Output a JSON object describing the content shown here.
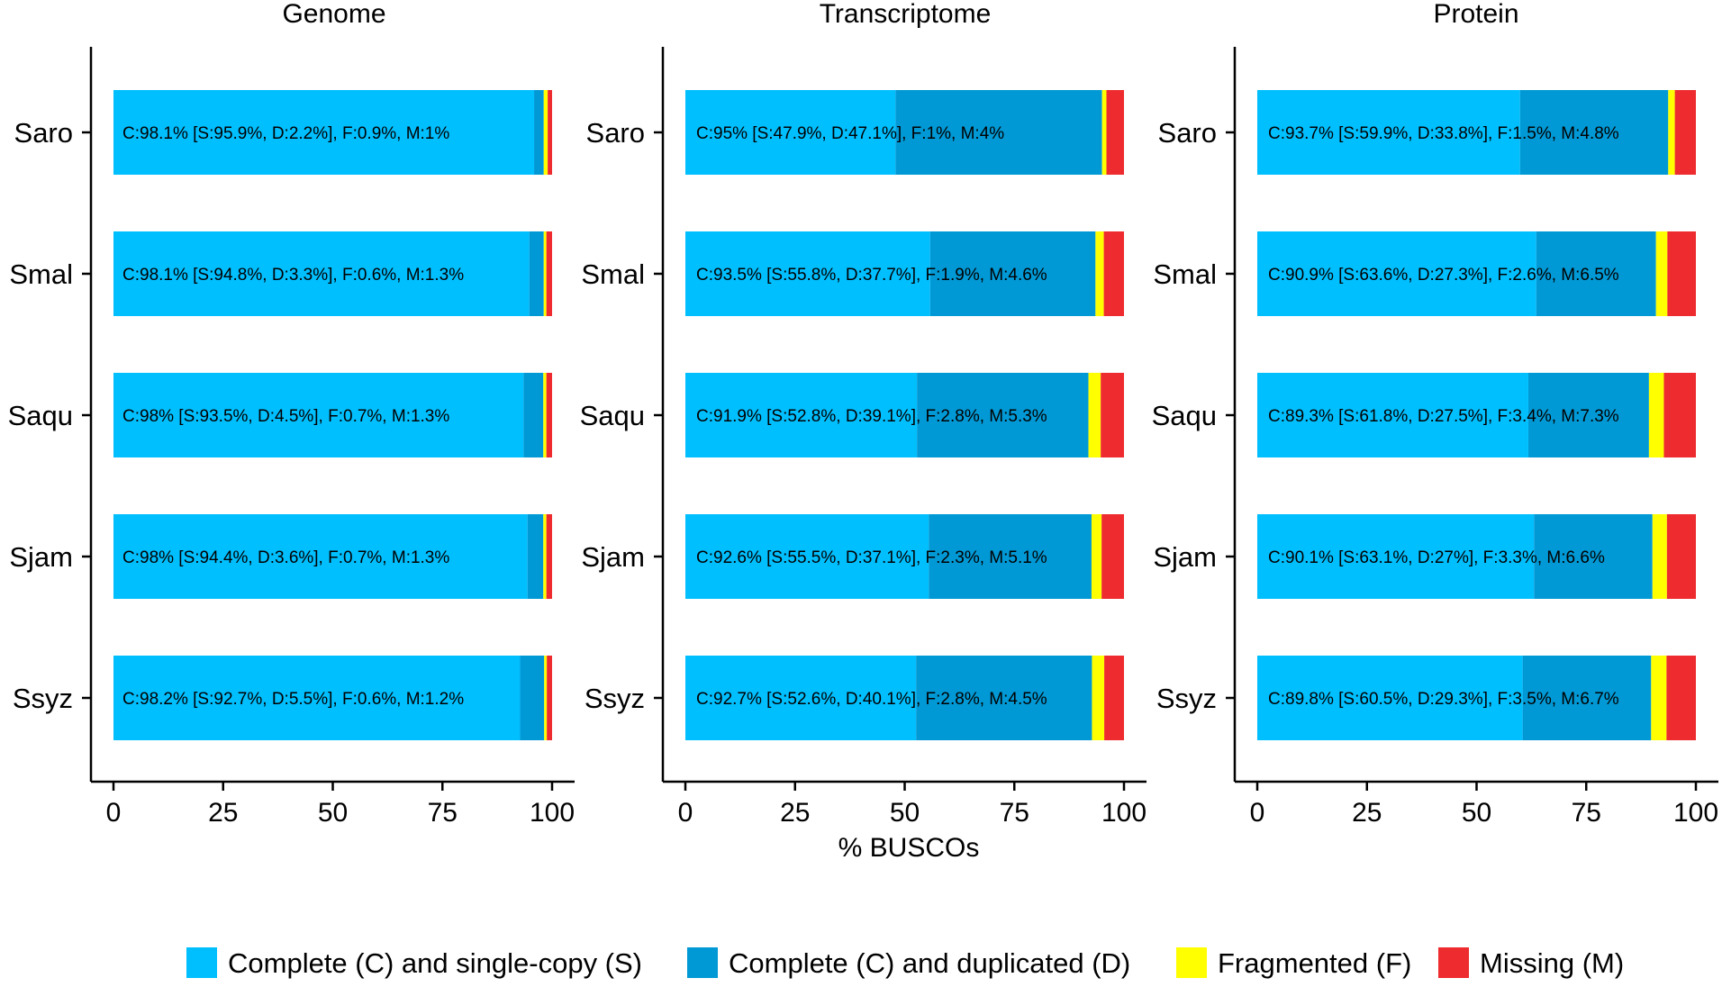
{
  "chart_data": {
    "type": "bar",
    "orientation": "horizontal",
    "stacked": true,
    "xlabel": "% BUSCOs",
    "xlim": [
      0,
      100
    ],
    "xticks": [
      "0",
      "25",
      "50",
      "75",
      "100"
    ],
    "grid": false,
    "legend_position": "bottom",
    "categories": [
      "Saro",
      "Smal",
      "Saqu",
      "Sjam",
      "Ssyz"
    ],
    "series_colors": {
      "single": "#00BFFF",
      "duplicated": "#0099D5",
      "fragmented": "#FFFF00",
      "missing": "#EE2B2E"
    },
    "legend": [
      {
        "key": "single",
        "label": "Complete (C) and single-copy (S)"
      },
      {
        "key": "duplicated",
        "label": "Complete (C) and duplicated (D)"
      },
      {
        "key": "fragmented",
        "label": "Fragmented (F)"
      },
      {
        "key": "missing",
        "label": "Missing (M)"
      }
    ],
    "panels": [
      {
        "title": "Genome",
        "bars": [
          {
            "species": "Saro",
            "single": 95.9,
            "duplicated": 2.2,
            "fragmented": 0.9,
            "missing": 1.0,
            "label": "C:98.1% [S:95.9%, D:2.2%], F:0.9%, M:1%"
          },
          {
            "species": "Smal",
            "single": 94.8,
            "duplicated": 3.3,
            "fragmented": 0.6,
            "missing": 1.3,
            "label": "C:98.1% [S:94.8%, D:3.3%], F:0.6%, M:1.3%"
          },
          {
            "species": "Saqu",
            "single": 93.5,
            "duplicated": 4.5,
            "fragmented": 0.7,
            "missing": 1.3,
            "label": "C:98% [S:93.5%, D:4.5%], F:0.7%, M:1.3%"
          },
          {
            "species": "Sjam",
            "single": 94.4,
            "duplicated": 3.6,
            "fragmented": 0.7,
            "missing": 1.3,
            "label": "C:98% [S:94.4%, D:3.6%], F:0.7%, M:1.3%"
          },
          {
            "species": "Ssyz",
            "single": 92.7,
            "duplicated": 5.5,
            "fragmented": 0.6,
            "missing": 1.2,
            "label": "C:98.2% [S:92.7%, D:5.5%], F:0.6%, M:1.2%"
          }
        ]
      },
      {
        "title": "Transcriptome",
        "bars": [
          {
            "species": "Saro",
            "single": 47.9,
            "duplicated": 47.1,
            "fragmented": 1.0,
            "missing": 4.0,
            "label": "C:95% [S:47.9%, D:47.1%], F:1%, M:4%"
          },
          {
            "species": "Smal",
            "single": 55.8,
            "duplicated": 37.7,
            "fragmented": 1.9,
            "missing": 4.6,
            "label": "C:93.5% [S:55.8%, D:37.7%], F:1.9%, M:4.6%"
          },
          {
            "species": "Saqu",
            "single": 52.8,
            "duplicated": 39.1,
            "fragmented": 2.8,
            "missing": 5.3,
            "label": "C:91.9% [S:52.8%, D:39.1%], F:2.8%, M:5.3%"
          },
          {
            "species": "Sjam",
            "single": 55.5,
            "duplicated": 37.1,
            "fragmented": 2.3,
            "missing": 5.1,
            "label": "C:92.6% [S:55.5%, D:37.1%], F:2.3%, M:5.1%"
          },
          {
            "species": "Ssyz",
            "single": 52.6,
            "duplicated": 40.1,
            "fragmented": 2.8,
            "missing": 4.5,
            "label": "C:92.7% [S:52.6%, D:40.1%], F:2.8%, M:4.5%"
          }
        ]
      },
      {
        "title": "Protein",
        "bars": [
          {
            "species": "Saro",
            "single": 59.9,
            "duplicated": 33.8,
            "fragmented": 1.5,
            "missing": 4.8,
            "label": "C:93.7% [S:59.9%, D:33.8%], F:1.5%, M:4.8%"
          },
          {
            "species": "Smal",
            "single": 63.6,
            "duplicated": 27.3,
            "fragmented": 2.6,
            "missing": 6.5,
            "label": "C:90.9% [S:63.6%, D:27.3%], F:2.6%, M:6.5%"
          },
          {
            "species": "Saqu",
            "single": 61.8,
            "duplicated": 27.5,
            "fragmented": 3.4,
            "missing": 7.3,
            "label": "C:89.3% [S:61.8%, D:27.5%], F:3.4%, M:7.3%"
          },
          {
            "species": "Sjam",
            "single": 63.1,
            "duplicated": 27.0,
            "fragmented": 3.3,
            "missing": 6.6,
            "label": "C:90.1% [S:63.1%, D:27%], F:3.3%, M:6.6%"
          },
          {
            "species": "Ssyz",
            "single": 60.5,
            "duplicated": 29.3,
            "fragmented": 3.5,
            "missing": 6.7,
            "label": "C:89.8% [S:60.5%, D:29.3%], F:3.5%, M:6.7%"
          }
        ]
      }
    ]
  }
}
